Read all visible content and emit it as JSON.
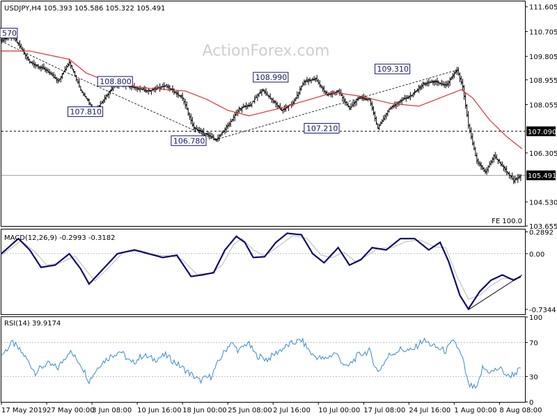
{
  "symbol_line": "USDJPY,H4  105.393 105.586 105.322 105.491",
  "watermark": "ActionForex.com",
  "colors": {
    "candles": "#000000",
    "sma": "#e03030",
    "macd_line": "#0a0a6e",
    "signal_line": "#b8b8b8",
    "rsi_line": "#3a8ad0",
    "label_box": "#14146e",
    "current_price_box": "#000000"
  },
  "chart_data": [
    {
      "type": "candlestick",
      "title": "USDJPY,H4  105.393 105.586 105.322 105.491",
      "ylim": [
        103.655,
        111.8
      ],
      "yticks": [
        {
          "label": "111.605",
          "value": 111.605
        },
        {
          "label": "110.705",
          "value": 110.705
        },
        {
          "label": "109.805",
          "value": 109.805
        },
        {
          "label": "108.955",
          "value": 108.955
        },
        {
          "label": "108.055",
          "value": 108.055
        },
        {
          "label": "106.305",
          "value": 106.305
        },
        {
          "label": "104.530",
          "value": 104.53
        },
        {
          "label": "103.655",
          "value": 103.655
        }
      ],
      "price_path": [
        {
          "i": 0,
          "p": 110.4
        },
        {
          "i": 8,
          "p": 110.55
        },
        {
          "i": 20,
          "p": 109.6
        },
        {
          "i": 32,
          "p": 109.3
        },
        {
          "i": 40,
          "p": 108.9
        },
        {
          "i": 48,
          "p": 109.6
        },
        {
          "i": 56,
          "p": 108.6
        },
        {
          "i": 66,
          "p": 107.81
        },
        {
          "i": 80,
          "p": 108.8
        },
        {
          "i": 92,
          "p": 108.7
        },
        {
          "i": 104,
          "p": 108.55
        },
        {
          "i": 116,
          "p": 108.75
        },
        {
          "i": 128,
          "p": 108.3
        },
        {
          "i": 136,
          "p": 107.2
        },
        {
          "i": 144,
          "p": 107.0
        },
        {
          "i": 152,
          "p": 106.78
        },
        {
          "i": 160,
          "p": 107.3
        },
        {
          "i": 168,
          "p": 107.9
        },
        {
          "i": 176,
          "p": 108.05
        },
        {
          "i": 184,
          "p": 108.6
        },
        {
          "i": 190,
          "p": 108.3
        },
        {
          "i": 198,
          "p": 107.85
        },
        {
          "i": 206,
          "p": 108.1
        },
        {
          "i": 214,
          "p": 108.9
        },
        {
          "i": 222,
          "p": 108.99
        },
        {
          "i": 230,
          "p": 108.4
        },
        {
          "i": 238,
          "p": 108.55
        },
        {
          "i": 246,
          "p": 107.9
        },
        {
          "i": 252,
          "p": 108.3
        },
        {
          "i": 260,
          "p": 108.25
        },
        {
          "i": 266,
          "p": 107.21
        },
        {
          "i": 274,
          "p": 107.9
        },
        {
          "i": 282,
          "p": 108.2
        },
        {
          "i": 290,
          "p": 108.4
        },
        {
          "i": 298,
          "p": 108.8
        },
        {
          "i": 306,
          "p": 108.9
        },
        {
          "i": 314,
          "p": 108.75
        },
        {
          "i": 322,
          "p": 109.31
        },
        {
          "i": 326,
          "p": 108.7
        },
        {
          "i": 330,
          "p": 107.3
        },
        {
          "i": 336,
          "p": 106.0
        },
        {
          "i": 342,
          "p": 105.6
        },
        {
          "i": 348,
          "p": 106.2
        },
        {
          "i": 356,
          "p": 105.7
        },
        {
          "i": 362,
          "p": 105.3
        },
        {
          "i": 367,
          "p": 105.49
        }
      ],
      "sma_path": [
        {
          "i": 0,
          "p": 110.0
        },
        {
          "i": 20,
          "p": 110.0
        },
        {
          "i": 48,
          "p": 109.7
        },
        {
          "i": 60,
          "p": 109.2
        },
        {
          "i": 80,
          "p": 108.8
        },
        {
          "i": 104,
          "p": 108.65
        },
        {
          "i": 130,
          "p": 108.55
        },
        {
          "i": 145,
          "p": 108.25
        },
        {
          "i": 160,
          "p": 107.85
        },
        {
          "i": 175,
          "p": 107.65
        },
        {
          "i": 195,
          "p": 107.9
        },
        {
          "i": 215,
          "p": 108.2
        },
        {
          "i": 235,
          "p": 108.5
        },
        {
          "i": 255,
          "p": 108.35
        },
        {
          "i": 275,
          "p": 108.1
        },
        {
          "i": 295,
          "p": 108.0
        },
        {
          "i": 315,
          "p": 108.4
        },
        {
          "i": 325,
          "p": 108.6
        },
        {
          "i": 333,
          "p": 108.3
        },
        {
          "i": 345,
          "p": 107.5
        },
        {
          "i": 357,
          "p": 106.9
        },
        {
          "i": 368,
          "p": 106.45
        }
      ],
      "trendlines": [
        {
          "from": {
            "i": 0,
            "p": 110.35
          },
          "to": {
            "i": 47,
            "p": 109.2
          }
        },
        {
          "from": {
            "i": 47,
            "p": 109.2
          },
          "to": {
            "i": 151,
            "p": 106.78
          }
        },
        {
          "from": {
            "i": 151,
            "p": 106.78
          },
          "to": {
            "i": 322,
            "p": 109.31
          }
        }
      ],
      "level_lines": [
        {
          "value": 107.09,
          "style": "dotted"
        },
        {
          "value": 105.491,
          "style": "solid"
        }
      ],
      "price_labels": [
        {
          "text": "570",
          "i": 0,
          "p": 110.65
        },
        {
          "text": "108.800",
          "i": 68,
          "p": 108.9
        },
        {
          "text": "107.810",
          "i": 47,
          "p": 107.8
        },
        {
          "text": "106.780",
          "i": 120,
          "p": 106.75
        },
        {
          "text": "108.990",
          "i": 178,
          "p": 109.05
        },
        {
          "text": "107.210",
          "i": 214,
          "p": 107.2
        },
        {
          "text": "109.310",
          "i": 264,
          "p": 109.35
        }
      ],
      "axis_price_tags": [
        {
          "text": "107.090",
          "value": 107.09
        },
        {
          "text": "105.491",
          "value": 105.491
        }
      ],
      "corner_label": "FE 100.0"
    },
    {
      "type": "line",
      "title": "MACD(12,26,9) -0.2993 -0.3182",
      "ylim": [
        -0.8,
        0.32
      ],
      "yticks": [
        {
          "label": "0.2892",
          "value": 0.2892
        },
        {
          "label": "0.00",
          "value": 0.0
        },
        {
          "label": "-0.7344",
          "value": -0.7344
        }
      ],
      "macd_path": [
        {
          "i": 0,
          "p": 0.0
        },
        {
          "i": 12,
          "p": 0.2
        },
        {
          "i": 20,
          "p": 0.05
        },
        {
          "i": 28,
          "p": -0.18
        },
        {
          "i": 38,
          "p": -0.15
        },
        {
          "i": 48,
          "p": 0.0
        },
        {
          "i": 56,
          "p": -0.2
        },
        {
          "i": 62,
          "p": -0.4
        },
        {
          "i": 72,
          "p": -0.2
        },
        {
          "i": 82,
          "p": 0.0
        },
        {
          "i": 94,
          "p": 0.05
        },
        {
          "i": 104,
          "p": 0.0
        },
        {
          "i": 114,
          "p": -0.05
        },
        {
          "i": 124,
          "p": -0.02
        },
        {
          "i": 134,
          "p": -0.3
        },
        {
          "i": 142,
          "p": -0.28
        },
        {
          "i": 150,
          "p": -0.25
        },
        {
          "i": 158,
          "p": 0.05
        },
        {
          "i": 166,
          "p": 0.23
        },
        {
          "i": 172,
          "p": 0.15
        },
        {
          "i": 178,
          "p": -0.05
        },
        {
          "i": 186,
          "p": -0.04
        },
        {
          "i": 194,
          "p": 0.15
        },
        {
          "i": 202,
          "p": 0.27
        },
        {
          "i": 212,
          "p": 0.25
        },
        {
          "i": 220,
          "p": 0.0
        },
        {
          "i": 228,
          "p": -0.12
        },
        {
          "i": 238,
          "p": 0.08
        },
        {
          "i": 246,
          "p": -0.15
        },
        {
          "i": 254,
          "p": -0.08
        },
        {
          "i": 262,
          "p": 0.08
        },
        {
          "i": 272,
          "p": 0.05
        },
        {
          "i": 282,
          "p": 0.2
        },
        {
          "i": 292,
          "p": 0.2
        },
        {
          "i": 302,
          "p": 0.05
        },
        {
          "i": 310,
          "p": 0.15
        },
        {
          "i": 316,
          "p": -0.1
        },
        {
          "i": 324,
          "p": -0.55
        },
        {
          "i": 330,
          "p": -0.73
        },
        {
          "i": 338,
          "p": -0.5
        },
        {
          "i": 346,
          "p": -0.35
        },
        {
          "i": 354,
          "p": -0.28
        },
        {
          "i": 362,
          "p": -0.35
        },
        {
          "i": 367,
          "p": -0.3
        }
      ],
      "signal_path": [
        {
          "i": 0,
          "p": -0.02
        },
        {
          "i": 14,
          "p": 0.17
        },
        {
          "i": 24,
          "p": 0.02
        },
        {
          "i": 32,
          "p": -0.15
        },
        {
          "i": 42,
          "p": -0.12
        },
        {
          "i": 52,
          "p": -0.03
        },
        {
          "i": 60,
          "p": -0.22
        },
        {
          "i": 66,
          "p": -0.36
        },
        {
          "i": 76,
          "p": -0.18
        },
        {
          "i": 86,
          "p": 0.02
        },
        {
          "i": 98,
          "p": 0.04
        },
        {
          "i": 110,
          "p": -0.02
        },
        {
          "i": 120,
          "p": -0.03
        },
        {
          "i": 128,
          "p": -0.08
        },
        {
          "i": 138,
          "p": -0.27
        },
        {
          "i": 148,
          "p": -0.26
        },
        {
          "i": 156,
          "p": -0.15
        },
        {
          "i": 164,
          "p": 0.12
        },
        {
          "i": 170,
          "p": 0.2
        },
        {
          "i": 178,
          "p": 0.05
        },
        {
          "i": 186,
          "p": -0.03
        },
        {
          "i": 196,
          "p": 0.1
        },
        {
          "i": 206,
          "p": 0.24
        },
        {
          "i": 216,
          "p": 0.2
        },
        {
          "i": 226,
          "p": -0.02
        },
        {
          "i": 234,
          "p": -0.05
        },
        {
          "i": 242,
          "p": 0.02
        },
        {
          "i": 250,
          "p": -0.1
        },
        {
          "i": 258,
          "p": -0.03
        },
        {
          "i": 266,
          "p": 0.07
        },
        {
          "i": 276,
          "p": 0.08
        },
        {
          "i": 286,
          "p": 0.16
        },
        {
          "i": 296,
          "p": 0.18
        },
        {
          "i": 306,
          "p": 0.09
        },
        {
          "i": 314,
          "p": 0.08
        },
        {
          "i": 322,
          "p": -0.3
        },
        {
          "i": 330,
          "p": -0.6
        },
        {
          "i": 338,
          "p": -0.55
        },
        {
          "i": 346,
          "p": -0.42
        },
        {
          "i": 354,
          "p": -0.33
        },
        {
          "i": 362,
          "p": -0.33
        },
        {
          "i": 367,
          "p": -0.32
        }
      ],
      "trendline": {
        "from": {
          "i": 330,
          "p": -0.74
        },
        "to": {
          "i": 368,
          "p": -0.28
        }
      }
    },
    {
      "type": "line",
      "title": "RSI(14) 39.9174",
      "ylim": [
        0,
        100
      ],
      "yticks": [
        {
          "label": "100",
          "value": 100
        },
        {
          "label": "70",
          "value": 70
        },
        {
          "label": "30",
          "value": 30
        },
        {
          "label": "0",
          "value": 0
        }
      ],
      "levels": [
        70,
        30
      ],
      "rsi_path": [
        {
          "i": 0,
          "p": 55
        },
        {
          "i": 8,
          "p": 70
        },
        {
          "i": 16,
          "p": 55
        },
        {
          "i": 24,
          "p": 35
        },
        {
          "i": 32,
          "p": 45
        },
        {
          "i": 40,
          "p": 40
        },
        {
          "i": 48,
          "p": 60
        },
        {
          "i": 56,
          "p": 45
        },
        {
          "i": 62,
          "p": 25
        },
        {
          "i": 70,
          "p": 45
        },
        {
          "i": 78,
          "p": 55
        },
        {
          "i": 84,
          "p": 60
        },
        {
          "i": 92,
          "p": 45
        },
        {
          "i": 100,
          "p": 55
        },
        {
          "i": 108,
          "p": 50
        },
        {
          "i": 116,
          "p": 55
        },
        {
          "i": 124,
          "p": 45
        },
        {
          "i": 132,
          "p": 35
        },
        {
          "i": 140,
          "p": 25
        },
        {
          "i": 148,
          "p": 30
        },
        {
          "i": 156,
          "p": 55
        },
        {
          "i": 162,
          "p": 70
        },
        {
          "i": 168,
          "p": 60
        },
        {
          "i": 174,
          "p": 70
        },
        {
          "i": 180,
          "p": 55
        },
        {
          "i": 188,
          "p": 50
        },
        {
          "i": 196,
          "p": 60
        },
        {
          "i": 204,
          "p": 68
        },
        {
          "i": 212,
          "p": 73
        },
        {
          "i": 220,
          "p": 55
        },
        {
          "i": 228,
          "p": 50
        },
        {
          "i": 236,
          "p": 58
        },
        {
          "i": 244,
          "p": 40
        },
        {
          "i": 252,
          "p": 55
        },
        {
          "i": 260,
          "p": 60
        },
        {
          "i": 266,
          "p": 35
        },
        {
          "i": 274,
          "p": 55
        },
        {
          "i": 282,
          "p": 62
        },
        {
          "i": 290,
          "p": 60
        },
        {
          "i": 298,
          "p": 73
        },
        {
          "i": 306,
          "p": 65
        },
        {
          "i": 314,
          "p": 60
        },
        {
          "i": 320,
          "p": 73
        },
        {
          "i": 326,
          "p": 50
        },
        {
          "i": 330,
          "p": 20
        },
        {
          "i": 336,
          "p": 15
        },
        {
          "i": 340,
          "p": 40
        },
        {
          "i": 346,
          "p": 35
        },
        {
          "i": 352,
          "p": 40
        },
        {
          "i": 358,
          "p": 30
        },
        {
          "i": 364,
          "p": 35
        },
        {
          "i": 367,
          "p": 39.9
        }
      ]
    }
  ],
  "x_axis": {
    "labels": [
      {
        "text": "17 May 2019",
        "i": 0
      },
      {
        "text": "27 May 00:00",
        "i": 64
      },
      {
        "text": "3 Jun 08:00",
        "i": 128
      },
      {
        "text": "10 Jun 16:00",
        "i": 192
      },
      {
        "text": "18 Jun 00:00",
        "i": 256
      },
      {
        "text": "25 Jun 08:00",
        "i": 320
      },
      {
        "text": "2 Jul 16:00",
        "i": 384
      },
      {
        "text": "10 Jul 00:00",
        "i": 448
      },
      {
        "text": "17 Jul 08:00",
        "i": 512
      },
      {
        "text": "24 Jul 16:00",
        "i": 576
      },
      {
        "text": "1 Aug 00:00",
        "i": 640
      },
      {
        "text": "8 Aug 08:00",
        "i": 704
      }
    ]
  }
}
